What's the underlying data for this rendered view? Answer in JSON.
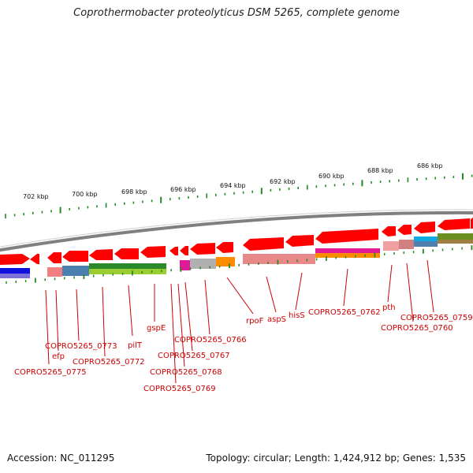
{
  "title": "Coprothermobacter proteolyticus DSM 5265, complete genome",
  "footer": {
    "accession": "Accession: NC_011295",
    "summary": "Topology: circular; Length: 1,424,912 bp; Genes: 1,535"
  },
  "colors": {
    "gene_arrow": "#ff0000",
    "tick": "#228b22",
    "backbone": "#808080",
    "label": "#cc0000",
    "leader_line": "#cc0000"
  },
  "scale_labels": [
    "702 kbp",
    "700 kbp",
    "698 kbp",
    "696 kbp",
    "694 kbp",
    "692 kbp",
    "690 kbp",
    "688 kbp",
    "686 kbp"
  ],
  "gene_labels": [
    "COPRO5265_0775",
    "efp",
    "COPRO5265_0773",
    "COPRO5265_0772",
    "pilT",
    "gspE",
    "COPRO5265_0769",
    "COPRO5265_0768",
    "COPRO5265_0767",
    "COPRO5265_0766",
    "rpoF",
    "aspS",
    "hisS",
    "COPRO5265_0762",
    "pth",
    "COPRO5265_0760",
    "COPRO5265_0759"
  ]
}
